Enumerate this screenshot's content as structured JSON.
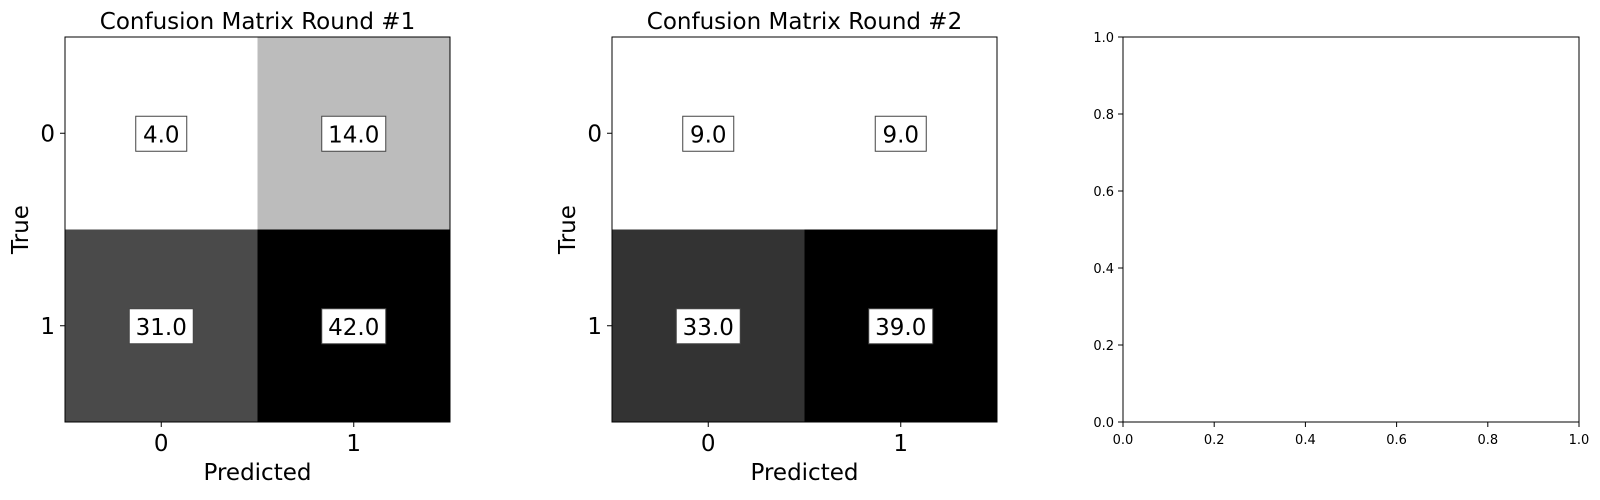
{
  "chart_data": [
    {
      "type": "heatmap",
      "title": "Confusion Matrix Round #1",
      "xlabel": "Predicted",
      "ylabel": "True",
      "x_categories": [
        "0",
        "1"
      ],
      "y_categories": [
        "0",
        "1"
      ],
      "values": [
        [
          4.0,
          14.0
        ],
        [
          31.0,
          42.0
        ]
      ],
      "value_labels": [
        [
          "4.0",
          "14.0"
        ],
        [
          "31.0",
          "42.0"
        ]
      ],
      "colormap": "gray_r",
      "colors": {
        "low": "#ffffff",
        "high": "#000000"
      }
    },
    {
      "type": "heatmap",
      "title": "Confusion Matrix Round #2",
      "xlabel": "Predicted",
      "ylabel": "True",
      "x_categories": [
        "0",
        "1"
      ],
      "y_categories": [
        "0",
        "1"
      ],
      "values": [
        [
          9.0,
          9.0
        ],
        [
          33.0,
          39.0
        ]
      ],
      "value_labels": [
        [
          "9.0",
          "9.0"
        ],
        [
          "33.0",
          "39.0"
        ]
      ],
      "colormap": "gray_r",
      "colors": {
        "low": "#ffffff",
        "high": "#000000"
      }
    },
    {
      "type": "scatter",
      "title": "",
      "xlabel": "",
      "ylabel": "",
      "xlim": [
        0.0,
        1.0
      ],
      "ylim": [
        0.0,
        1.0
      ],
      "x_ticks": [
        "0.0",
        "0.2",
        "0.4",
        "0.6",
        "0.8",
        "1.0"
      ],
      "y_ticks": [
        "0.0",
        "0.2",
        "0.4",
        "0.6",
        "0.8",
        "1.0"
      ],
      "series": []
    }
  ]
}
